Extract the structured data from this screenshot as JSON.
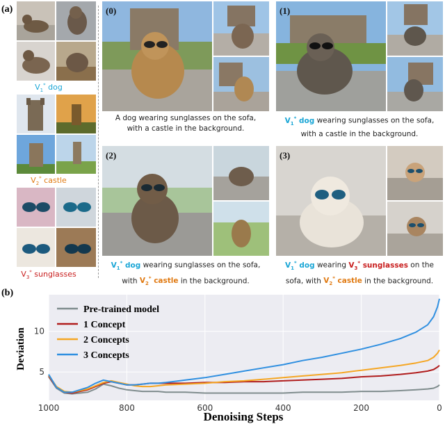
{
  "panel_a": {
    "label": "(a)",
    "concepts": [
      {
        "v": "V",
        "sub": "1",
        "sup": "*",
        "word": "dog"
      },
      {
        "v": "V",
        "sub": "2",
        "sup": "*",
        "word": "castle"
      },
      {
        "v": "V",
        "sub": "3",
        "sup": "*",
        "word": "sunglasses"
      }
    ]
  },
  "results": [
    {
      "tag": "(0)",
      "cap_line1": "A dog wearing sunglasses on the sofa,",
      "cap_line2": "with a castle in the background."
    },
    {
      "tag": "(1)",
      "cap_l1_rest": " wearing sunglasses on the sofa,",
      "cap_line2": "with a castle in the background."
    },
    {
      "tag": "(2)",
      "cap_l1_rest": " wearing sunglasses on the sofa,",
      "cap_l2_pre": "with ",
      "cap_l2_rest": " in the background."
    },
    {
      "tag": "(3)",
      "cap_l1_mid": " wearing ",
      "cap_l1_rest": " on the",
      "cap_l2_pre": "sofa, with ",
      "cap_l2_rest": " in the background."
    }
  ],
  "panel_b": {
    "label": "(b)"
  },
  "colors": {
    "pretrained": "#7f8c8d",
    "one": "#b01c1c",
    "two": "#f5a623",
    "three": "#2f8fe0",
    "dog": "#1aa6d6",
    "castle": "#e07a12",
    "sunglasses": "#c81e1e"
  },
  "chart_data": {
    "type": "line",
    "xlabel": "Denoising Steps",
    "ylabel": "Deviation",
    "xlim": [
      1000,
      0
    ],
    "ylim": [
      1.5,
      14.5
    ],
    "xticks": [
      1000,
      800,
      600,
      400,
      200,
      0
    ],
    "yticks": [
      5,
      10
    ],
    "legend_position": "top-left",
    "x": [
      1000,
      980,
      960,
      940,
      920,
      900,
      880,
      860,
      840,
      820,
      800,
      780,
      760,
      740,
      720,
      700,
      650,
      600,
      550,
      500,
      450,
      400,
      350,
      300,
      250,
      200,
      150,
      100,
      60,
      30,
      15,
      5,
      0
    ],
    "series": [
      {
        "name": "Pre-trained model",
        "values": [
          4.4,
          3.0,
          2.4,
          2.3,
          2.4,
          2.5,
          2.9,
          3.5,
          3.3,
          3.0,
          2.8,
          2.7,
          2.6,
          2.6,
          2.6,
          2.5,
          2.5,
          2.4,
          2.4,
          2.4,
          2.4,
          2.4,
          2.5,
          2.5,
          2.5,
          2.6,
          2.6,
          2.7,
          2.8,
          2.9,
          3.0,
          3.2,
          3.4
        ]
      },
      {
        "name": "1 Concept",
        "values": [
          4.5,
          3.1,
          2.5,
          2.4,
          2.6,
          2.8,
          3.2,
          3.6,
          3.8,
          3.6,
          3.4,
          3.4,
          3.5,
          3.6,
          3.6,
          3.6,
          3.6,
          3.7,
          3.7,
          3.8,
          3.8,
          3.9,
          4.0,
          4.1,
          4.2,
          4.4,
          4.5,
          4.7,
          4.9,
          5.1,
          5.3,
          5.6,
          5.8
        ]
      },
      {
        "name": "2 Concepts",
        "values": [
          4.6,
          3.2,
          2.6,
          2.5,
          2.7,
          2.9,
          3.3,
          3.7,
          3.9,
          3.7,
          3.5,
          3.3,
          3.2,
          3.2,
          3.3,
          3.4,
          3.5,
          3.6,
          3.8,
          3.9,
          4.1,
          4.3,
          4.5,
          4.7,
          4.9,
          5.2,
          5.5,
          5.8,
          6.1,
          6.4,
          6.8,
          7.3,
          7.7
        ]
      },
      {
        "name": "3 Concepts",
        "values": [
          4.7,
          3.1,
          2.5,
          2.5,
          2.8,
          3.1,
          3.6,
          4.0,
          3.8,
          3.6,
          3.4,
          3.4,
          3.5,
          3.6,
          3.6,
          3.7,
          4.0,
          4.3,
          4.7,
          5.1,
          5.5,
          5.9,
          6.4,
          6.8,
          7.3,
          7.8,
          8.4,
          9.1,
          9.9,
          10.8,
          11.8,
          13.0,
          14.0
        ]
      }
    ]
  }
}
